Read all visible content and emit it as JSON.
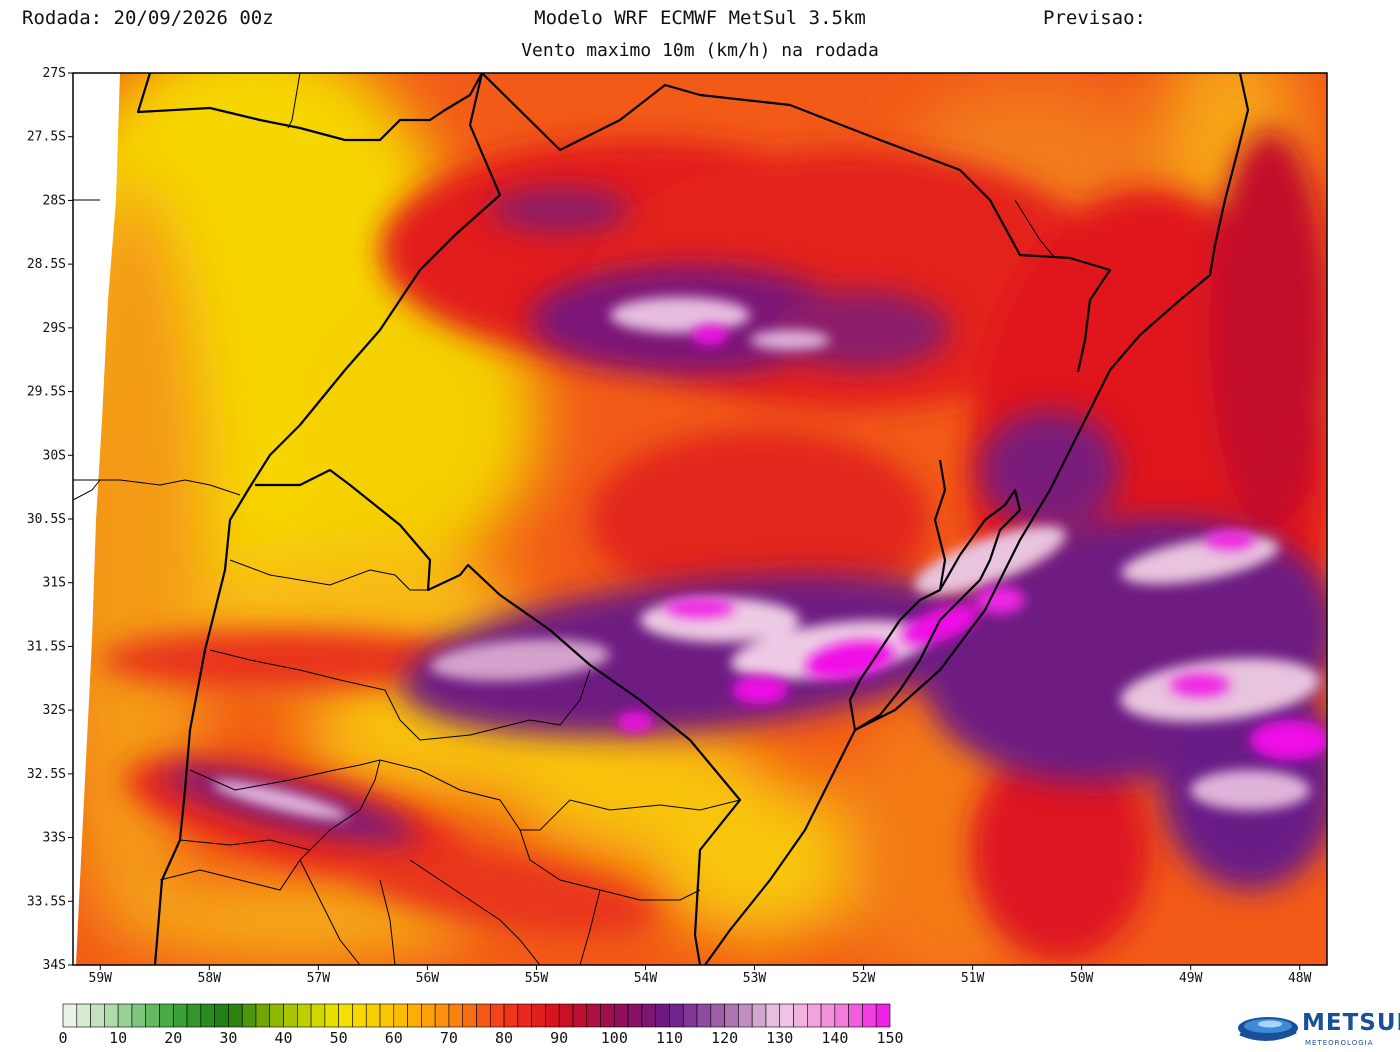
{
  "header": {
    "run_label": "Rodada: 20/09/2026 00z",
    "model_title": "Modelo WRF ECMWF MetSul 3.5km",
    "forecast_label": "Previsao:",
    "subtitle": "Vento maximo 10m (km/h) na rodada"
  },
  "map": {
    "variable": "max 10m wind speed",
    "unit": "km/h",
    "lat_range": [
      -34,
      -27
    ],
    "lon_range": [
      -59.25,
      -47.75
    ],
    "lat_ticks": [
      "27S",
      "27.5S",
      "28S",
      "28.5S",
      "29S",
      "29.5S",
      "30S",
      "30.5S",
      "31S",
      "31.5S",
      "32S",
      "32.5S",
      "33S",
      "33.5S",
      "34S"
    ],
    "lon_ticks": [
      "59W",
      "58W",
      "57W",
      "56W",
      "55W",
      "54W",
      "53W",
      "52W",
      "51W",
      "50W",
      "49W",
      "48W"
    ]
  },
  "legend": {
    "labels": [
      "0",
      "10",
      "20",
      "30",
      "40",
      "50",
      "60",
      "70",
      "80",
      "90",
      "100",
      "110",
      "120",
      "130",
      "140",
      "150"
    ],
    "min": 0,
    "max": 150,
    "step": 2.5,
    "color_stops": [
      {
        "v": 0,
        "c": "#f4f4ee"
      },
      {
        "v": 10,
        "c": "#a6d8a2"
      },
      {
        "v": 20,
        "c": "#3fa53c"
      },
      {
        "v": 30,
        "c": "#1e7a12"
      },
      {
        "v": 40,
        "c": "#9fc200"
      },
      {
        "v": 50,
        "c": "#f0e400"
      },
      {
        "v": 60,
        "c": "#fcc300"
      },
      {
        "v": 70,
        "c": "#fb8a10"
      },
      {
        "v": 80,
        "c": "#f23a1a"
      },
      {
        "v": 90,
        "c": "#d40f22"
      },
      {
        "v": 100,
        "c": "#960f52"
      },
      {
        "v": 110,
        "c": "#6a1a86"
      },
      {
        "v": 120,
        "c": "#a46aac"
      },
      {
        "v": 130,
        "c": "#eecbe4"
      },
      {
        "v": 140,
        "c": "#f28bd8"
      },
      {
        "v": 150,
        "c": "#f011e6"
      }
    ]
  },
  "logo": {
    "name": "METSUL",
    "tagline": "METEOROLOGIA"
  }
}
